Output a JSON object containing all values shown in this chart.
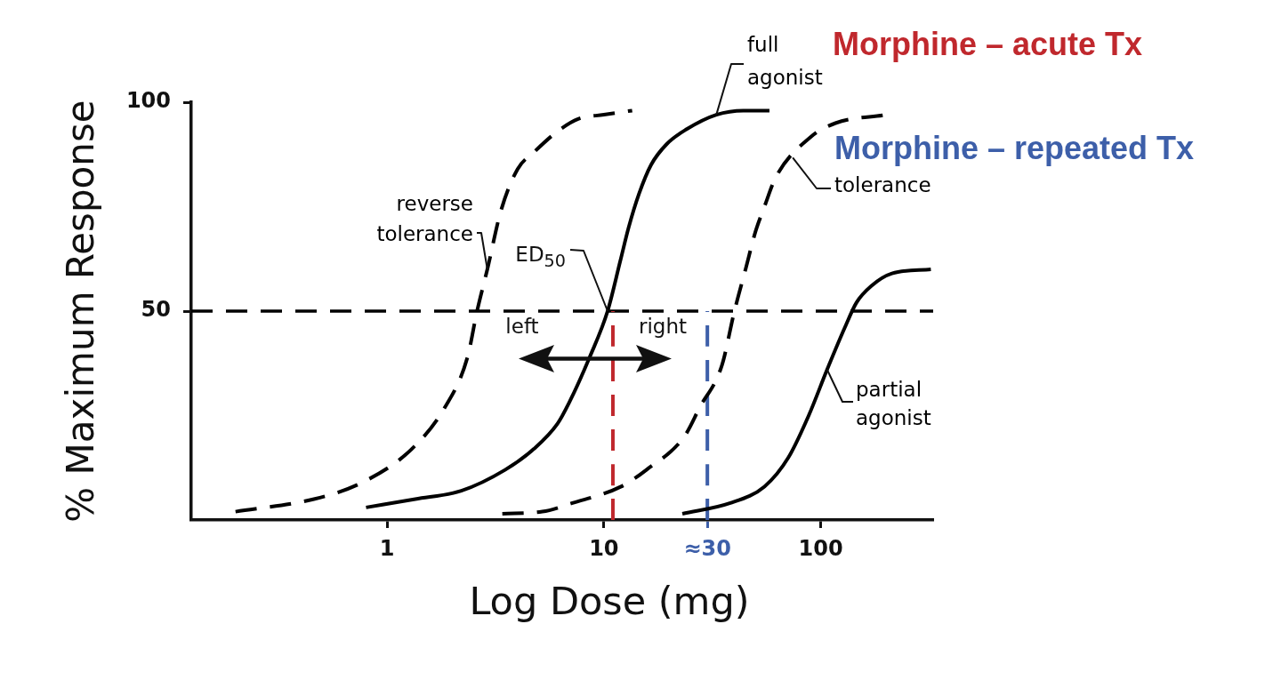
{
  "chart_data": {
    "type": "line",
    "xlabel": "Log Dose (mg)",
    "ylabel": "% Maximum Response",
    "log": "x",
    "xlim": [
      0.125,
      330
    ],
    "xticks": [
      1,
      10,
      {
        "value": 30,
        "label": "≈30"
      },
      100
    ],
    "ylim": [
      0,
      100
    ],
    "yticks": [
      50,
      100
    ],
    "marker": "none",
    "series": [
      {
        "name": "reverse tolerance",
        "color": "#000000",
        "line_style": "dashed",
        "x": [
          0.2,
          0.46,
          0.77,
          1.3,
          1.85,
          2.35,
          2.6,
          2.9,
          3.35,
          4,
          4.75,
          6.1,
          7.6,
          10,
          13.5
        ],
        "values": [
          2,
          5,
          9,
          17,
          27,
          39,
          50,
          60,
          74,
          84,
          88,
          93,
          96,
          97,
          98
        ]
      },
      {
        "name": "full agonist",
        "color": "#000000",
        "line_style": "solid",
        "x": [
          0.8,
          1.35,
          2.2,
          3.5,
          4.75,
          6.1,
          6.9,
          8.6,
          10.4,
          11.9,
          13,
          14.5,
          16.5,
          19.5,
          24,
          33,
          44,
          58
        ],
        "values": [
          3,
          5,
          7,
          12,
          17,
          23,
          28,
          39,
          50,
          62,
          70,
          78,
          85,
          90,
          93.5,
          97,
          98,
          98
        ]
      },
      {
        "name": "tolerance",
        "color": "#000000",
        "line_style": "dashed",
        "x": [
          3.4,
          5.2,
          7.1,
          12,
          15.7,
          23.5,
          27.7,
          35,
          40,
          45,
          50,
          55,
          62,
          89,
          117,
          200
        ],
        "values": [
          1.5,
          2,
          4,
          8,
          12,
          20,
          27,
          37,
          50,
          60,
          69,
          75,
          82,
          91.5,
          95,
          97
        ]
      },
      {
        "name": "partial agonist",
        "color": "#000000",
        "line_style": "solid",
        "x": [
          23,
          38,
          55,
          71,
          88,
          107,
          129,
          146,
          171,
          213,
          322
        ],
        "values": [
          1.5,
          4,
          8,
          15,
          25,
          36,
          46,
          52,
          56,
          59,
          60
        ]
      },
      {
        "name": "Morphine – acute Tx",
        "color": "#c0282d",
        "line_style": "dashed",
        "x": [
          11,
          11
        ],
        "values": [
          0,
          50
        ]
      },
      {
        "name": "Morphine – repeated Tx",
        "color": "#3d5fa9",
        "line_style": "dashed",
        "x": [
          30,
          30
        ],
        "values": [
          0,
          50
        ]
      }
    ],
    "ref_lines": [
      {
        "axis": "y",
        "value": 50,
        "color": "#000000",
        "line_style": "dashed"
      }
    ],
    "annotations": [
      "left",
      "right",
      {
        "text": "ED$_{50}$",
        "x": 10.4,
        "y": 50
      }
    ]
  }
}
